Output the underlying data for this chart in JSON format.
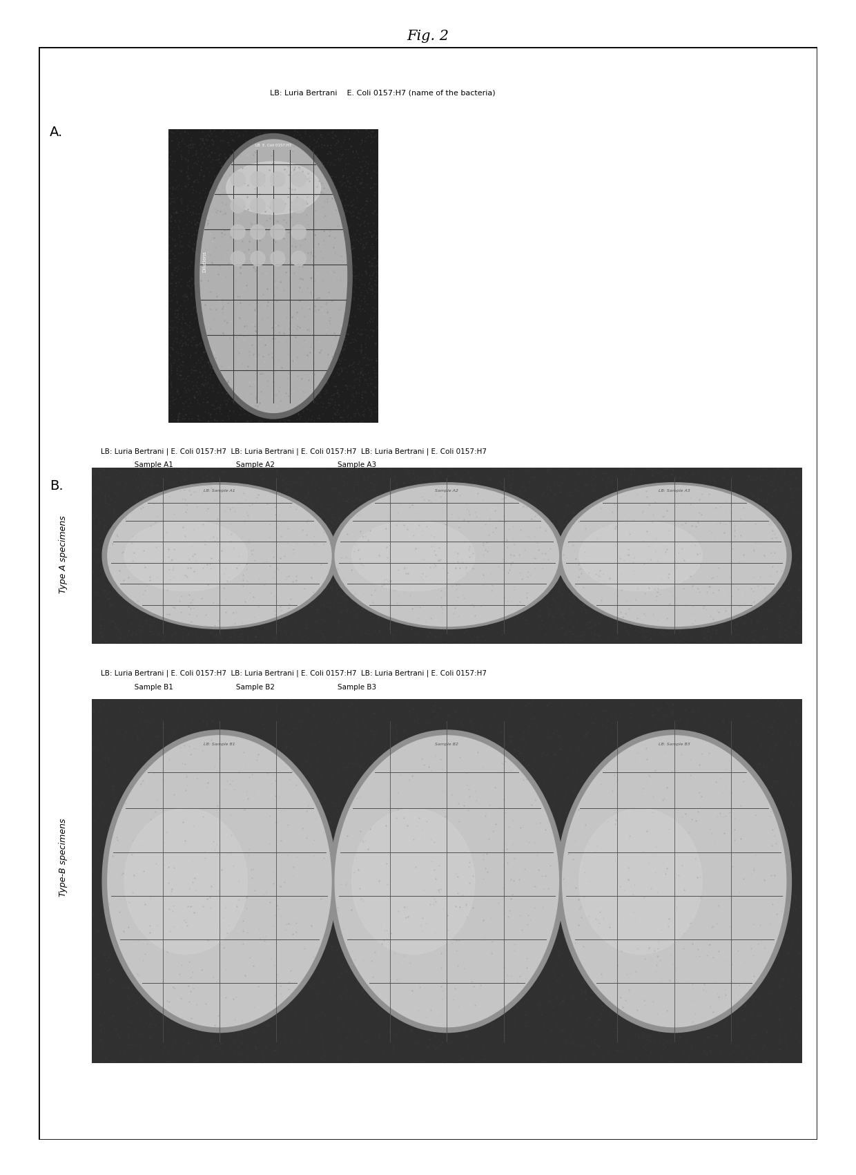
{
  "fig_title": "Fig. 2",
  "fig_title_fontsize": 15,
  "background_color": "#ffffff",
  "panel_A_label": "A.",
  "panel_B_label": "B.",
  "label_A_side": "Type A specimens",
  "label_B_side": "Type-B specimens",
  "header_A_text": "LB: Luria Bertrani    E. Coli 0157:H7 (name of the bacteria)",
  "header_B_line1": "LB: Luria Bertrani | E. Coli 0157:H7  LB: Luria Bertrani | E. Coli 0157:H7  LB: Luria Bertrani | E. Coli 0157:H7",
  "header_B_line2": "               Sample A1                            Sample A2                            Sample A3",
  "header_C_line1": "LB: Luria Bertrani | E. Coli 0157:H7  LB: Luria Bertrani | E. Coli 0157:H7  LB: Luria Bertrani | E. Coli 0157:H7",
  "header_C_line2": "               Sample B1                            Sample B2                            Sample B3",
  "text_fontsize": 8,
  "label_fontsize": 14,
  "side_label_fontsize": 9,
  "dish_bg": "#282828",
  "dish_outer_rim": "#888888",
  "dish_inner_color": "#c8c8c8",
  "dish_bright_center": "#e0e0e0",
  "grid_color": "#606060",
  "colony_color": "#d8d8d8",
  "panel_bg": "#303030",
  "single_dish_bg": "#1e1e1e"
}
